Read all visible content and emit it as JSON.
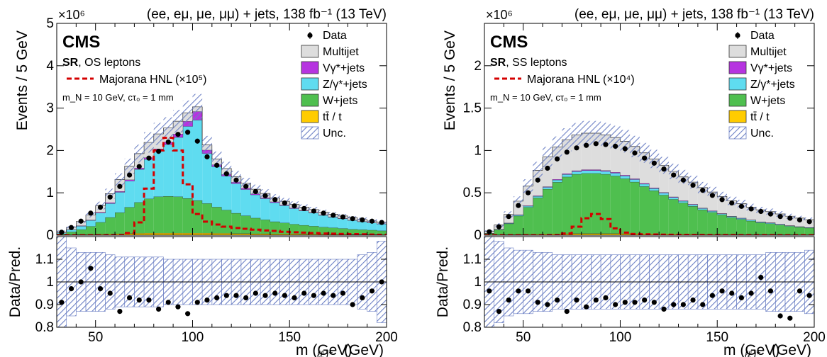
{
  "chart_data": [
    {
      "type": "bar",
      "stacked": true,
      "title": "(ee, eμ, μe, μμ) + jets, 138 fb⁻¹ (13 TeV)",
      "experiment": "CMS",
      "region": "SR",
      "region_suffix": ", OS leptons",
      "signal_params": "m_N = 10 GeV, cτ₀ = 1 mm",
      "ylabel": "Events / 5 GeV",
      "y_multiplier": "×10⁶",
      "xlabel": "m_{ℓℓj*} (GeV)",
      "ratio_ylabel": "Data/Pred.",
      "xlim": [
        30,
        200
      ],
      "ylim": [
        0,
        5
      ],
      "yticks": [
        0,
        1,
        2,
        3,
        4,
        5
      ],
      "xticks": [
        50,
        100,
        150,
        200
      ],
      "ratio_ylim": [
        0.8,
        1.2
      ],
      "ratio_yticks": [
        0.8,
        0.9,
        1,
        1.1
      ],
      "x_bin_edges": [
        30,
        35,
        40,
        45,
        50,
        55,
        60,
        65,
        70,
        75,
        80,
        85,
        90,
        95,
        100,
        105,
        110,
        115,
        120,
        125,
        130,
        135,
        140,
        145,
        150,
        155,
        160,
        165,
        170,
        175,
        180,
        185,
        190,
        195,
        200
      ],
      "stack_order": [
        "tt / t",
        "W+jets",
        "Z/γ*+jets",
        "Vγ*+jets",
        "Multijet"
      ],
      "series": [
        {
          "name": "tt / t",
          "color": "#ffcc00",
          "values": [
            0.005,
            0.01,
            0.015,
            0.02,
            0.025,
            0.03,
            0.035,
            0.04,
            0.045,
            0.05,
            0.05,
            0.05,
            0.05,
            0.05,
            0.05,
            0.05,
            0.045,
            0.045,
            0.04,
            0.04,
            0.035,
            0.035,
            0.03,
            0.03,
            0.03,
            0.025,
            0.025,
            0.02,
            0.02,
            0.02,
            0.015,
            0.015,
            0.015,
            0.01
          ]
        },
        {
          "name": "W+jets",
          "color": "#4fbf4f",
          "values": [
            0.03,
            0.07,
            0.12,
            0.19,
            0.28,
            0.39,
            0.5,
            0.62,
            0.73,
            0.81,
            0.86,
            0.87,
            0.86,
            0.82,
            0.77,
            0.7,
            0.62,
            0.55,
            0.48,
            0.42,
            0.37,
            0.33,
            0.29,
            0.26,
            0.23,
            0.21,
            0.19,
            0.17,
            0.155,
            0.14,
            0.125,
            0.115,
            0.105,
            0.095
          ]
        },
        {
          "name": "Z/γ*+jets",
          "color": "#5fdcf0",
          "values": [
            0.02,
            0.05,
            0.08,
            0.14,
            0.22,
            0.33,
            0.48,
            0.62,
            0.78,
            0.93,
            1.08,
            1.22,
            1.4,
            1.7,
            1.9,
            1.18,
            0.95,
            0.8,
            0.7,
            0.62,
            0.55,
            0.5,
            0.45,
            0.41,
            0.37,
            0.34,
            0.31,
            0.28,
            0.25,
            0.23,
            0.21,
            0.19,
            0.17,
            0.16
          ]
        },
        {
          "name": "Vγ*+jets",
          "color": "#b634e0",
          "values": [
            0.003,
            0.005,
            0.01,
            0.01,
            0.015,
            0.02,
            0.02,
            0.03,
            0.03,
            0.04,
            0.05,
            0.06,
            0.08,
            0.12,
            0.2,
            0.08,
            0.05,
            0.04,
            0.03,
            0.03,
            0.02,
            0.02,
            0.02,
            0.015,
            0.015,
            0.01,
            0.01,
            0.01,
            0.01,
            0.008,
            0.007,
            0.006,
            0.005,
            0.005
          ]
        },
        {
          "name": "Multijet",
          "color": "#dddddd",
          "values": [
            0.02,
            0.05,
            0.1,
            0.12,
            0.16,
            0.21,
            0.28,
            0.32,
            0.34,
            0.36,
            0.35,
            0.33,
            0.3,
            0.2,
            0.11,
            0.12,
            0.13,
            0.14,
            0.13,
            0.12,
            0.11,
            0.1,
            0.09,
            0.085,
            0.08,
            0.075,
            0.07,
            0.065,
            0.06,
            0.055,
            0.05,
            0.045,
            0.04,
            0.035
          ]
        }
      ],
      "signal": {
        "name": "Majorana HNL (×10⁵)",
        "color": "#d40000",
        "values": [
          0.0,
          0.0,
          0.0,
          0.0,
          0.0,
          0.0,
          0.0,
          0.05,
          0.3,
          1.1,
          2.0,
          2.3,
          2.0,
          1.2,
          0.5,
          0.32,
          0.25,
          0.2,
          0.17,
          0.15,
          0.13,
          0.11,
          0.1,
          0.08,
          0.07,
          0.06,
          0.05,
          0.04,
          0.035,
          0.03,
          0.025,
          0.02,
          0.015,
          0.01
        ]
      },
      "data": {
        "name": "Data",
        "x": [
          32.5,
          37.5,
          42.5,
          47.5,
          52.5,
          57.5,
          62.5,
          67.5,
          72.5,
          77.5,
          82.5,
          87.5,
          92.5,
          97.5,
          102.5,
          107.5,
          112.5,
          117.5,
          122.5,
          127.5,
          132.5,
          137.5,
          142.5,
          147.5,
          152.5,
          157.5,
          162.5,
          167.5,
          172.5,
          177.5,
          182.5,
          187.5,
          192.5,
          197.5
        ],
        "y": [
          0.07,
          0.18,
          0.33,
          0.52,
          0.66,
          0.9,
          1.15,
          1.42,
          1.62,
          1.82,
          1.98,
          2.2,
          2.38,
          2.43,
          2.22,
          1.85,
          1.65,
          1.45,
          1.3,
          1.15,
          1.03,
          0.93,
          0.84,
          0.76,
          0.69,
          0.63,
          0.57,
          0.52,
          0.47,
          0.43,
          0.39,
          0.36,
          0.33,
          0.3
        ]
      },
      "ratio": [
        0.91,
        0.97,
        1.0,
        1.06,
        0.97,
        0.95,
        0.87,
        0.93,
        0.92,
        0.92,
        0.88,
        0.91,
        0.89,
        0.86,
        0.91,
        0.92,
        0.93,
        0.94,
        0.94,
        0.93,
        0.95,
        0.94,
        0.95,
        0.94,
        0.93,
        0.95,
        0.94,
        0.95,
        0.94,
        0.95,
        0.9,
        0.93,
        0.96,
        1.0
      ],
      "unc_fraction": [
        0.4,
        0.15,
        0.13,
        0.13,
        0.13,
        0.12,
        0.11,
        0.11,
        0.11,
        0.11,
        0.11,
        0.1,
        0.1,
        0.1,
        0.1,
        0.1,
        0.1,
        0.1,
        0.1,
        0.1,
        0.1,
        0.1,
        0.1,
        0.1,
        0.1,
        0.1,
        0.1,
        0.1,
        0.1,
        0.1,
        0.1,
        0.12,
        0.13,
        0.18
      ]
    },
    {
      "type": "bar",
      "stacked": true,
      "title": "(ee, eμ, μe, μμ) + jets, 138 fb⁻¹ (13 TeV)",
      "experiment": "CMS",
      "region": "SR",
      "region_suffix": ", SS leptons",
      "signal_params": "m_N = 10 GeV, cτ₀ = 1 mm",
      "ylabel": "Events / 5 GeV",
      "y_multiplier": "×10⁶",
      "xlabel": "m_{ℓℓj*} (GeV)",
      "ratio_ylabel": "Data/Pred.",
      "xlim": [
        30,
        200
      ],
      "ylim": [
        0,
        2.5
      ],
      "yticks": [
        0,
        0.5,
        1,
        1.5,
        2
      ],
      "xticks": [
        50,
        100,
        150,
        200
      ],
      "ratio_ylim": [
        0.8,
        1.2
      ],
      "ratio_yticks": [
        0.8,
        0.9,
        1,
        1.1
      ],
      "x_bin_edges": [
        30,
        35,
        40,
        45,
        50,
        55,
        60,
        65,
        70,
        75,
        80,
        85,
        90,
        95,
        100,
        105,
        110,
        115,
        120,
        125,
        130,
        135,
        140,
        145,
        150,
        155,
        160,
        165,
        170,
        175,
        180,
        185,
        190,
        195,
        200
      ],
      "stack_order": [
        "tt / t",
        "W+jets",
        "Z/γ*+jets",
        "Vγ*+jets",
        "Multijet"
      ],
      "series": [
        {
          "name": "tt / t",
          "color": "#ffcc00",
          "values": [
            0.002,
            0.004,
            0.006,
            0.008,
            0.01,
            0.012,
            0.014,
            0.016,
            0.018,
            0.02,
            0.02,
            0.02,
            0.02,
            0.02,
            0.018,
            0.018,
            0.016,
            0.016,
            0.014,
            0.014,
            0.012,
            0.012,
            0.01,
            0.01,
            0.01,
            0.009,
            0.008,
            0.008,
            0.007,
            0.007,
            0.006,
            0.006,
            0.005,
            0.005
          ]
        },
        {
          "name": "W+jets",
          "color": "#4fbf4f",
          "values": [
            0.02,
            0.06,
            0.13,
            0.22,
            0.32,
            0.43,
            0.53,
            0.61,
            0.67,
            0.7,
            0.71,
            0.71,
            0.7,
            0.68,
            0.65,
            0.61,
            0.56,
            0.51,
            0.46,
            0.41,
            0.37,
            0.33,
            0.29,
            0.26,
            0.23,
            0.2,
            0.18,
            0.16,
            0.14,
            0.13,
            0.115,
            0.1,
            0.09,
            0.08
          ]
        },
        {
          "name": "Z/γ*+jets",
          "color": "#5fdcf0",
          "values": [
            0.002,
            0.004,
            0.006,
            0.01,
            0.014,
            0.018,
            0.022,
            0.026,
            0.03,
            0.032,
            0.034,
            0.034,
            0.034,
            0.033,
            0.032,
            0.03,
            0.028,
            0.026,
            0.024,
            0.022,
            0.02,
            0.018,
            0.016,
            0.014,
            0.013,
            0.012,
            0.011,
            0.01,
            0.009,
            0.008,
            0.007,
            0.006,
            0.005,
            0.005
          ]
        },
        {
          "name": "Vγ*+jets",
          "color": "#b634e0",
          "values": [
            0.001,
            0.002,
            0.003,
            0.004,
            0.005,
            0.006,
            0.007,
            0.008,
            0.009,
            0.01,
            0.01,
            0.01,
            0.01,
            0.01,
            0.009,
            0.009,
            0.008,
            0.008,
            0.007,
            0.007,
            0.006,
            0.006,
            0.005,
            0.005,
            0.004,
            0.004,
            0.004,
            0.003,
            0.003,
            0.003,
            0.003,
            0.002,
            0.002,
            0.002
          ]
        },
        {
          "name": "Multijet",
          "color": "#dddddd",
          "values": [
            0.02,
            0.05,
            0.1,
            0.16,
            0.23,
            0.3,
            0.35,
            0.38,
            0.4,
            0.42,
            0.43,
            0.43,
            0.42,
            0.41,
            0.4,
            0.38,
            0.36,
            0.34,
            0.32,
            0.3,
            0.28,
            0.26,
            0.24,
            0.22,
            0.2,
            0.18,
            0.17,
            0.15,
            0.14,
            0.13,
            0.12,
            0.11,
            0.1,
            0.09
          ]
        }
      ],
      "signal": {
        "name": "Majorana HNL (×10⁴)",
        "color": "#d40000",
        "values": [
          0.0,
          0.0,
          0.0,
          0.0,
          0.0,
          0.0,
          0.0,
          0.0,
          0.02,
          0.1,
          0.2,
          0.25,
          0.19,
          0.08,
          0.03,
          0.015,
          0.01,
          0.008,
          0.006,
          0.005,
          0.004,
          0.003,
          0.003,
          0.002,
          0.002,
          0.002,
          0.001,
          0.001,
          0.001,
          0.001,
          0.0,
          0.0,
          0.0,
          0.0
        ]
      },
      "data": {
        "name": "Data",
        "x": [
          32.5,
          37.5,
          42.5,
          47.5,
          52.5,
          57.5,
          62.5,
          67.5,
          72.5,
          77.5,
          82.5,
          87.5,
          92.5,
          97.5,
          102.5,
          107.5,
          112.5,
          117.5,
          122.5,
          127.5,
          132.5,
          137.5,
          142.5,
          147.5,
          152.5,
          157.5,
          162.5,
          167.5,
          172.5,
          177.5,
          182.5,
          187.5,
          192.5,
          197.5
        ],
        "y": [
          0.04,
          0.1,
          0.22,
          0.35,
          0.5,
          0.65,
          0.79,
          0.9,
          0.98,
          1.03,
          1.06,
          1.08,
          1.07,
          1.05,
          1.02,
          0.97,
          0.91,
          0.85,
          0.78,
          0.71,
          0.65,
          0.59,
          0.53,
          0.47,
          0.42,
          0.38,
          0.34,
          0.31,
          0.28,
          0.25,
          0.22,
          0.2,
          0.18,
          0.16
        ]
      },
      "ratio": [
        0.96,
        0.87,
        0.92,
        0.96,
        0.96,
        0.91,
        0.9,
        0.92,
        0.87,
        0.92,
        0.89,
        0.92,
        0.93,
        0.9,
        0.91,
        0.91,
        0.92,
        0.91,
        0.88,
        0.9,
        0.9,
        0.92,
        0.9,
        0.94,
        0.96,
        0.95,
        0.93,
        0.95,
        1.02,
        0.96,
        0.85,
        0.84,
        0.96,
        0.94
      ],
      "unc_fraction": [
        0.3,
        0.18,
        0.15,
        0.14,
        0.14,
        0.13,
        0.13,
        0.12,
        0.12,
        0.12,
        0.12,
        0.12,
        0.12,
        0.12,
        0.12,
        0.12,
        0.12,
        0.12,
        0.12,
        0.12,
        0.12,
        0.12,
        0.12,
        0.12,
        0.12,
        0.12,
        0.12,
        0.12,
        0.12,
        0.13,
        0.13,
        0.13,
        0.13,
        0.14
      ]
    }
  ],
  "legend_labels": [
    "Data",
    "Multijet",
    "Vγ*+jets",
    "Z/γ*+jets",
    "W+jets",
    "tt̄ / t",
    "Unc."
  ]
}
